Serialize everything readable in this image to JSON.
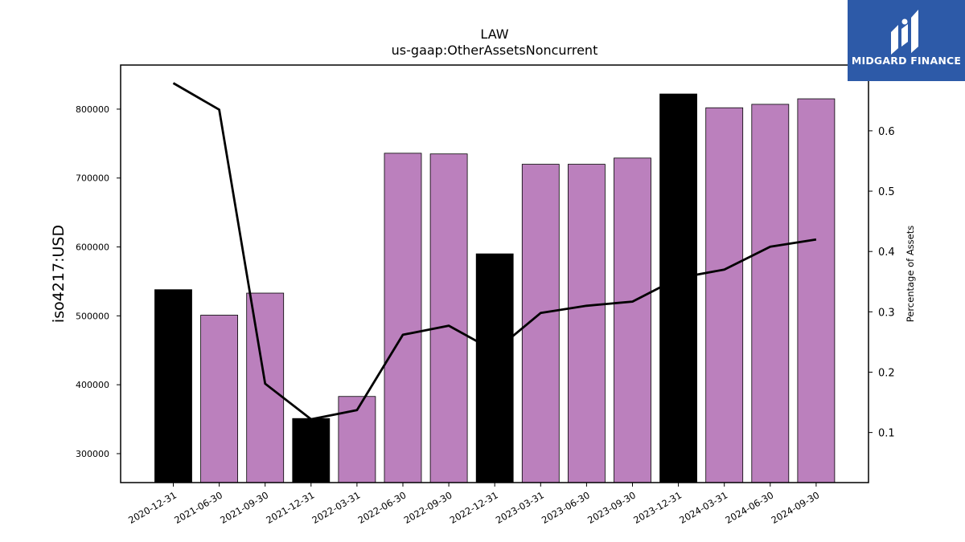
{
  "title": "LAW",
  "subtitle": "us-gaap:OtherAssetsNoncurrent",
  "logo": {
    "text": "MIDGARD FINANCE",
    "bg": "#2d5aa8"
  },
  "colors": {
    "bar_default": "#bb80bd",
    "bar_highlight": "#000000",
    "line": "#000000"
  },
  "chart_data": {
    "type": "bar",
    "title": "LAW",
    "subtitle": "us-gaap:OtherAssetsNoncurrent",
    "ylabel": "iso4217:USD",
    "y2label": "Percentage of Assets",
    "categories": [
      "2020-12-31",
      "2021-06-30",
      "2021-09-30",
      "2021-12-31",
      "2022-03-31",
      "2022-06-30",
      "2022-09-30",
      "2022-12-31",
      "2023-03-31",
      "2023-06-30",
      "2023-09-30",
      "2023-12-31",
      "2024-03-31",
      "2024-06-30",
      "2024-09-30"
    ],
    "ylim": [
      258000,
      864000
    ],
    "y2lim": [
      0.017,
      0.709
    ],
    "yticks": [
      300000,
      400000,
      500000,
      600000,
      700000,
      800000
    ],
    "y2ticks": [
      0.1,
      0.2,
      0.3,
      0.4,
      0.5,
      0.6
    ],
    "series": [
      {
        "type": "bar",
        "axis": "left",
        "values": [
          538000,
          501000,
          533000,
          351000,
          383000,
          736000,
          735000,
          590000,
          720000,
          720000,
          729000,
          822000,
          802000,
          807000,
          815000
        ],
        "highlight": [
          true,
          false,
          false,
          true,
          false,
          false,
          false,
          true,
          false,
          false,
          false,
          true,
          false,
          false,
          false
        ]
      },
      {
        "type": "line",
        "axis": "right",
        "values": [
          0.679,
          0.635,
          0.181,
          0.122,
          0.137,
          0.262,
          0.277,
          0.235,
          0.298,
          0.31,
          0.317,
          0.356,
          0.37,
          0.408,
          0.42
        ]
      }
    ]
  }
}
